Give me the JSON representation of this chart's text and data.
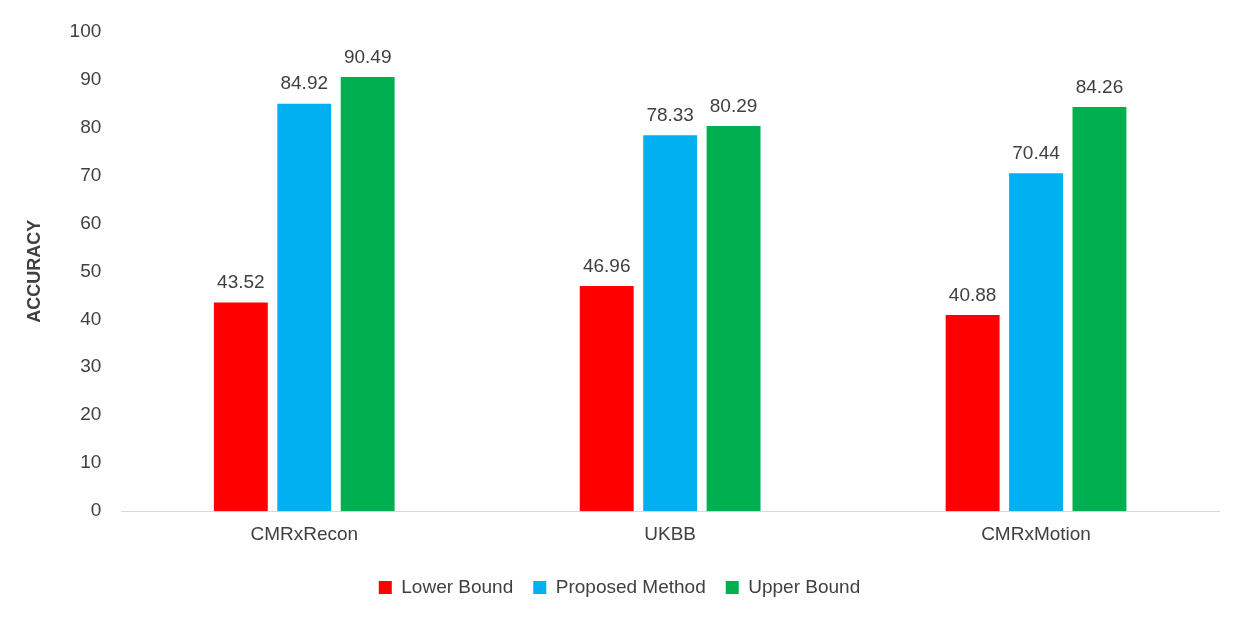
{
  "chart_data": {
    "type": "bar",
    "ylabel": "ACCURACY",
    "categories": [
      "CMRxRecon",
      "UKBB",
      "CMRxMotion"
    ],
    "series": [
      {
        "name": "Lower Bound",
        "color": "#ff0000",
        "values": [
          43.52,
          46.96,
          40.88
        ]
      },
      {
        "name": "Proposed Method",
        "color": "#00b0f0",
        "values": [
          84.92,
          78.33,
          70.44
        ]
      },
      {
        "name": "Upper Bound",
        "color": "#00b050",
        "values": [
          90.49,
          80.29,
          84.26
        ]
      }
    ],
    "ylim": [
      0,
      100
    ],
    "yticks": [
      0,
      10,
      20,
      30,
      40,
      50,
      60,
      70,
      80,
      90,
      100
    ],
    "grid": false,
    "legend": "bottom",
    "data_labels": true
  }
}
